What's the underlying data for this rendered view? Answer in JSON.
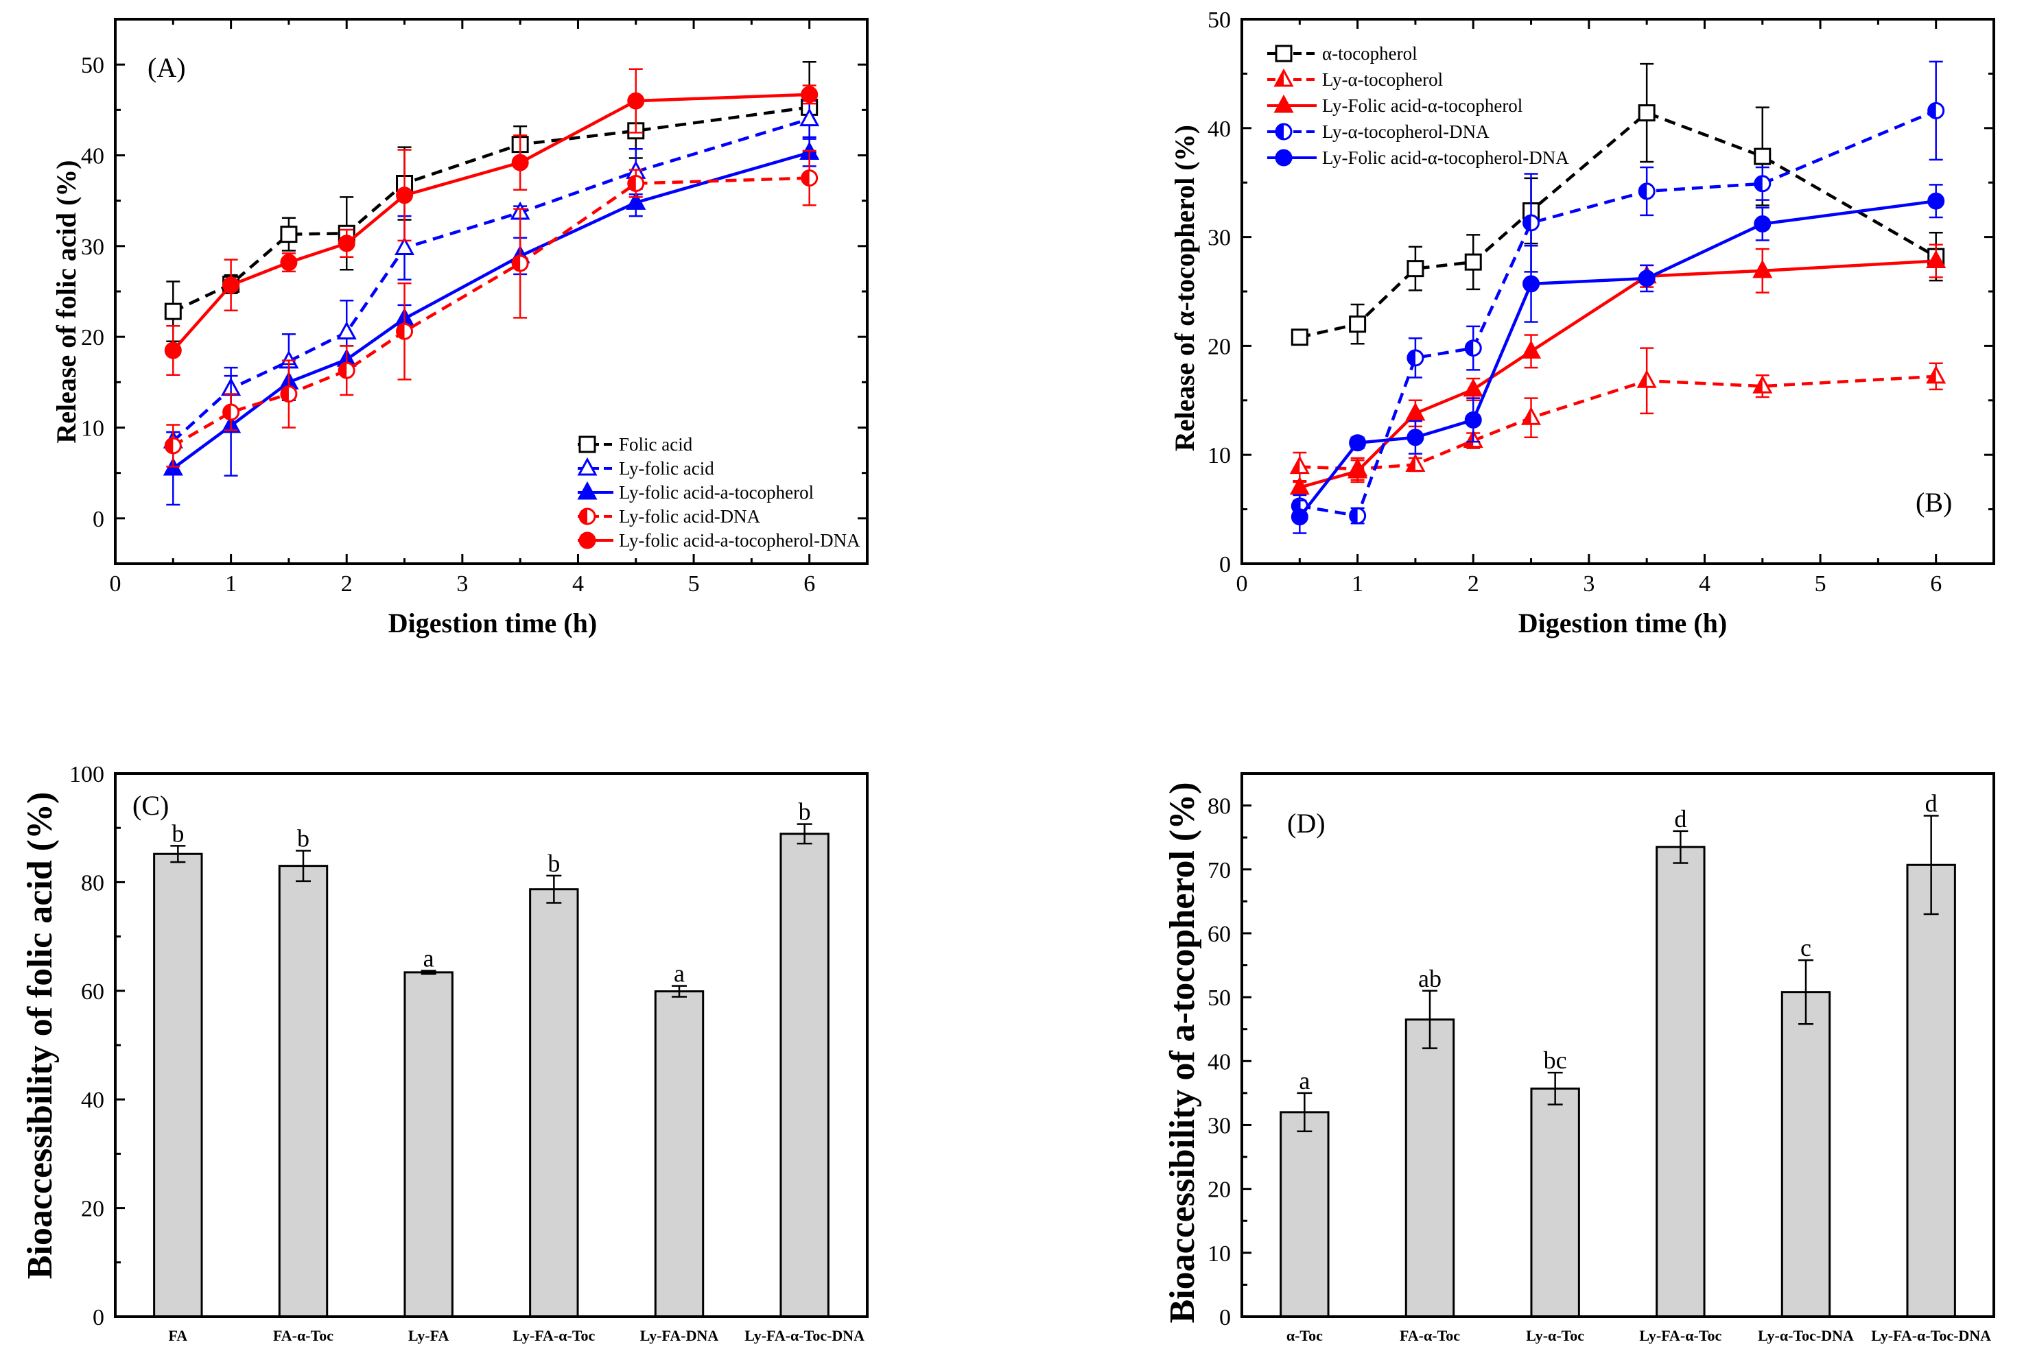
{
  "chart_data": [
    {
      "id": "A",
      "type": "line",
      "panel_label": "(A)",
      "xlabel": "Digestion time (h)",
      "ylabel": "Release of folic acid (%)",
      "xlim": [
        0,
        6.5
      ],
      "ylim": [
        -5,
        55
      ],
      "xticks": [
        0,
        1,
        2,
        3,
        4,
        5,
        6
      ],
      "yticks": [
        0,
        10,
        20,
        30,
        40,
        50
      ],
      "legend_position": "bottom-right",
      "series": [
        {
          "name": "Folic acid",
          "color": "#000000",
          "dashed": true,
          "marker": "square-open",
          "x": [
            0.5,
            1,
            1.5,
            2,
            2.5,
            3.5,
            4.5,
            6
          ],
          "y": [
            22.8,
            25.8,
            31.3,
            31.4,
            36.9,
            41.2,
            42.7,
            45.3
          ],
          "err": [
            3.3,
            1.0,
            1.8,
            4.0,
            4.0,
            2.0,
            3.0,
            5.0
          ]
        },
        {
          "name": "Ly-folic acid",
          "color": "#0000ff",
          "dashed": true,
          "marker": "triangle-open",
          "x": [
            0.5,
            1,
            1.5,
            2,
            2.5,
            3.5,
            4.5,
            6
          ],
          "y": [
            8.5,
            14.3,
            17.3,
            20.5,
            29.8,
            33.7,
            38.2,
            44.0
          ],
          "err": [
            1.0,
            2.3,
            3.0,
            3.5,
            3.5,
            0.7,
            2.5,
            2.0
          ]
        },
        {
          "name": "Ly-folic acid-a-tocopherol",
          "color": "#0000ff",
          "dashed": false,
          "marker": "triangle-filled",
          "x": [
            0.5,
            1,
            1.5,
            2,
            2.5,
            3.5,
            4.5,
            6
          ],
          "y": [
            5.5,
            10.2,
            15.0,
            17.5,
            22.0,
            28.9,
            34.8,
            40.3
          ],
          "err": [
            4.0,
            5.5,
            2.0,
            1.5,
            1.5,
            2.0,
            1.5,
            1.5
          ]
        },
        {
          "name": "Ly-folic acid-DNA",
          "color": "#ff0000",
          "dashed": true,
          "marker": "circle-half",
          "x": [
            0.5,
            1,
            1.5,
            2,
            2.5,
            3.5,
            4.5,
            6
          ],
          "y": [
            8.0,
            11.7,
            13.7,
            16.3,
            20.6,
            28.1,
            36.9,
            37.5
          ],
          "err": [
            2.3,
            2.0,
            3.7,
            2.7,
            5.3,
            6.0,
            1.5,
            3.0
          ]
        },
        {
          "name": "Ly-folic acid-a-tocopherol-DNA",
          "color": "#ff0000",
          "dashed": false,
          "marker": "circle-filled",
          "x": [
            0.5,
            1,
            1.5,
            2,
            2.5,
            3.5,
            4.5,
            6
          ],
          "y": [
            18.5,
            25.7,
            28.2,
            30.3,
            35.6,
            39.2,
            46.0,
            46.7
          ],
          "err": [
            2.7,
            2.8,
            1.0,
            1.5,
            5.0,
            3.0,
            3.5,
            1.0
          ]
        }
      ]
    },
    {
      "id": "B",
      "type": "line",
      "panel_label": "(B)",
      "xlabel": "Digestion time (h)",
      "ylabel": "Release of α-tocopherol (%)",
      "xlim": [
        0,
        6.5
      ],
      "ylim": [
        0,
        50
      ],
      "xticks": [
        0,
        1,
        2,
        3,
        4,
        5,
        6
      ],
      "yticks": [
        0,
        10,
        20,
        30,
        40,
        50
      ],
      "legend_position": "top-left",
      "series": [
        {
          "name": "α-tocopherol",
          "color": "#000000",
          "dashed": true,
          "marker": "square-open",
          "x": [
            0.5,
            1,
            1.5,
            2,
            2.5,
            3.5,
            4.5,
            6
          ],
          "y": [
            20.8,
            22.0,
            27.1,
            27.7,
            32.4,
            41.4,
            37.4,
            28.2
          ],
          "err": [
            0.3,
            1.8,
            2.0,
            2.5,
            3.0,
            4.5,
            4.5,
            2.2
          ]
        },
        {
          "name": "Ly-α-tocopherol",
          "color": "#ff0000",
          "dashed": true,
          "marker": "triangle-half",
          "x": [
            0.5,
            1,
            1.5,
            2,
            2.5,
            3.5,
            4.5,
            6
          ],
          "y": [
            8.9,
            8.7,
            9.1,
            11.3,
            13.4,
            16.8,
            16.3,
            17.2
          ],
          "err": [
            1.3,
            1.0,
            0.6,
            0.7,
            1.8,
            3.0,
            1.0,
            1.2
          ]
        },
        {
          "name": "Ly-Folic acid-α-tocopherol",
          "color": "#ff0000",
          "dashed": false,
          "marker": "triangle-filled",
          "x": [
            0.5,
            1,
            1.5,
            2,
            2.5,
            3.5,
            4.5,
            6
          ],
          "y": [
            7.0,
            8.5,
            13.8,
            16.0,
            19.5,
            26.4,
            26.9,
            27.8
          ],
          "err": [
            0.5,
            1.0,
            1.2,
            1.0,
            1.5,
            1.0,
            2.0,
            1.5
          ]
        },
        {
          "name": "Ly-α-tocopherol-DNA",
          "color": "#0000ff",
          "dashed": true,
          "marker": "circle-half",
          "x": [
            0.5,
            1,
            1.5,
            2,
            2.5,
            3.5,
            4.5,
            6
          ],
          "y": [
            5.3,
            4.4,
            18.9,
            19.8,
            31.3,
            34.2,
            34.9,
            41.6
          ],
          "err": [
            1.0,
            0.7,
            1.8,
            2.0,
            4.5,
            2.2,
            1.5,
            4.5
          ]
        },
        {
          "name": "Ly-Folic acid-α-tocopherol-DNA",
          "color": "#0000ff",
          "dashed": false,
          "marker": "circle-filled",
          "x": [
            0.5,
            1,
            1.5,
            2,
            2.5,
            3.5,
            4.5,
            6
          ],
          "y": [
            4.3,
            11.1,
            11.6,
            13.2,
            25.7,
            26.2,
            31.2,
            33.3
          ],
          "err": [
            1.5,
            0.5,
            1.5,
            2.0,
            3.5,
            1.2,
            1.5,
            1.5
          ]
        }
      ]
    },
    {
      "id": "C",
      "type": "bar",
      "panel_label": "(C)",
      "xlabel": "",
      "ylabel": "Bioaccessibility of folic acid (%)",
      "ylim": [
        0,
        100
      ],
      "yticks": [
        0,
        20,
        40,
        60,
        80,
        100
      ],
      "bar_color": "#d3d3d3",
      "categories": [
        "FA",
        "FA-α-Toc",
        "Ly-FA",
        "Ly-FA-α-Toc",
        "Ly-FA-DNA",
        "Ly-FA-α-Toc-DNA"
      ],
      "values": [
        85.2,
        83.0,
        63.4,
        78.7,
        59.9,
        88.9
      ],
      "errors": [
        1.5,
        2.8,
        0.3,
        2.5,
        1.0,
        1.8
      ],
      "letters": [
        "b",
        "b",
        "a",
        "b",
        "a",
        "b"
      ]
    },
    {
      "id": "D",
      "type": "bar",
      "panel_label": "(D)",
      "xlabel": "",
      "ylabel": "Bioaccessibility of a-tocopherol (%)",
      "ylim": [
        0,
        85
      ],
      "yticks": [
        0,
        10,
        20,
        30,
        40,
        50,
        60,
        70,
        80
      ],
      "bar_color": "#d3d3d3",
      "categories": [
        "α-Toc",
        "FA-α-Toc",
        "Ly-α-Toc",
        "Ly-FA-α-Toc",
        "Ly-α-Toc-DNA",
        "Ly-FA-α-Toc-DNA"
      ],
      "values": [
        32.0,
        46.5,
        35.7,
        73.5,
        50.8,
        70.7
      ],
      "errors": [
        3.0,
        4.5,
        2.5,
        2.5,
        5.0,
        7.7
      ],
      "letters": [
        "a",
        "ab",
        "bc",
        "d",
        "c",
        "d"
      ]
    }
  ]
}
